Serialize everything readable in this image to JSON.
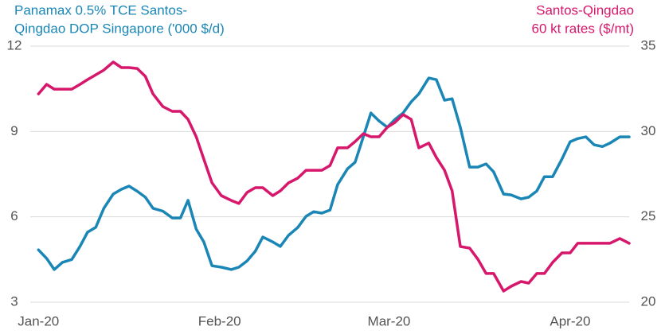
{
  "chart_data": {
    "type": "line",
    "y_label": [
      "Panamax 0.5% TCE Santos-",
      "Qingdao DOP Singapore ('000 $/d)"
    ],
    "y2_label": [
      "Santos-Qingdao",
      "60 kt rates ($/mt)"
    ],
    "x": [
      0,
      1.4,
      2.7,
      4.1,
      5.7,
      7.1,
      8.4,
      9.8,
      11.2,
      12.8,
      14.2,
      15.5,
      16.9,
      18.3,
      19.6,
      21.3,
      22.9,
      24.3,
      25.6,
      27.0,
      28.3,
      29.7,
      31.3,
      33.0,
      34.3,
      35.7,
      37.1,
      38.4,
      40.1,
      41.4,
      42.8,
      44.4,
      45.8,
      47.1,
      48.5,
      49.9,
      51.2,
      52.9,
      54.2,
      55.6,
      56.9,
      58.3,
      59.7,
      61.0,
      62.4,
      63.8,
      65.1,
      66.8,
      68.1,
      69.5,
      70.8,
      72.2,
      73.8,
      75.2,
      76.6,
      77.9,
      79.6,
      80.9,
      82.6,
      83.9,
      85.3,
      86.6,
      88.0,
      89.6,
      91.0,
      92.3,
      93.7,
      95.1,
      96.5,
      97.8,
      99.5,
      101.1
    ],
    "xlim": [
      -1.4,
      101.1
    ],
    "xticks": [
      {
        "value": 0,
        "label": "Jan-20"
      },
      {
        "value": 31,
        "label": "Feb-20"
      },
      {
        "value": 60,
        "label": "Mar-20"
      },
      {
        "value": 91,
        "label": "Apr-20"
      }
    ],
    "ylim": [
      3,
      12
    ],
    "yticks": [
      3,
      6,
      9,
      12
    ],
    "y2lim": [
      20,
      35
    ],
    "y2ticks": [
      20,
      25,
      30,
      35
    ],
    "grid": true,
    "series": [
      {
        "name": "Panamax 0.5% TCE Santos-Qingdao DOP Singapore",
        "color": "#1a86b5",
        "axis": "y",
        "values": [
          4.84,
          4.54,
          4.15,
          4.4,
          4.5,
          4.96,
          5.46,
          5.63,
          6.3,
          6.8,
          6.97,
          7.08,
          6.9,
          6.69,
          6.3,
          6.2,
          5.96,
          5.96,
          6.58,
          5.57,
          5.12,
          4.28,
          4.23,
          4.15,
          4.23,
          4.45,
          4.79,
          5.29,
          5.12,
          4.96,
          5.35,
          5.63,
          6.02,
          6.18,
          6.13,
          6.24,
          7.13,
          7.69,
          7.92,
          8.81,
          9.65,
          9.37,
          9.15,
          9.42,
          9.65,
          10.04,
          10.32,
          10.88,
          10.82,
          10.1,
          10.15,
          9.15,
          7.75,
          7.75,
          7.86,
          7.58,
          6.8,
          6.77,
          6.63,
          6.69,
          6.91,
          7.41,
          7.41,
          8.03,
          8.64,
          8.75,
          8.81,
          8.53,
          8.47,
          8.59,
          8.81,
          8.81
        ]
      },
      {
        "name": "Santos-Qingdao 60 kt rates",
        "color": "#d6176b",
        "axis": "y2",
        "values": [
          32.2,
          32.76,
          32.48,
          32.48,
          32.48,
          32.76,
          33.04,
          33.32,
          33.6,
          34.07,
          33.74,
          33.74,
          33.69,
          33.23,
          32.2,
          31.46,
          31.18,
          31.18,
          30.71,
          29.69,
          28.38,
          26.99,
          26.24,
          25.96,
          25.78,
          26.43,
          26.71,
          26.71,
          26.24,
          26.52,
          26.99,
          27.27,
          27.73,
          27.73,
          27.73,
          28.01,
          29.04,
          29.04,
          29.41,
          29.87,
          29.69,
          29.69,
          30.25,
          30.53,
          30.99,
          30.71,
          29.04,
          29.32,
          28.48,
          27.73,
          26.52,
          23.26,
          23.17,
          22.52,
          21.68,
          21.68,
          20.65,
          20.93,
          21.21,
          21.12,
          21.68,
          21.68,
          22.33,
          22.89,
          22.89,
          23.45,
          23.45,
          23.45,
          23.45,
          23.45,
          23.73,
          23.45
        ]
      }
    ]
  }
}
